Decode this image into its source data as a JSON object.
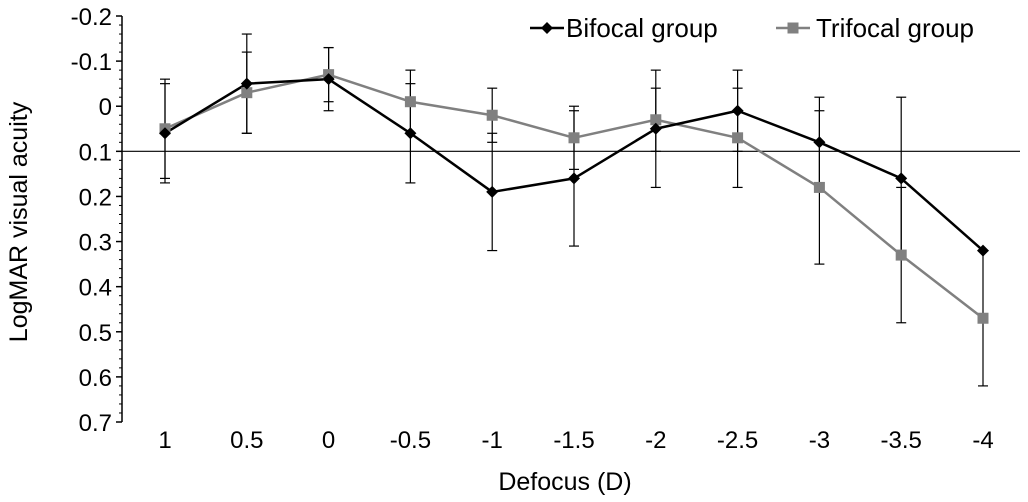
{
  "chart_data": {
    "type": "line",
    "title": "",
    "xlabel": "Defocus (D)",
    "ylabel": "LogMAR visual acuity",
    "categories": [
      "1",
      "0.5",
      "0",
      "-0.5",
      "-1",
      "-1.5",
      "-2",
      "-2.5",
      "-3",
      "-3.5",
      "-4"
    ],
    "y_reversed": true,
    "ylim": [
      -0.2,
      0.7
    ],
    "y_ticks": [
      "-0.2",
      "-0.1",
      "0",
      "0.1",
      "0.2",
      "0.3",
      "0.4",
      "0.5",
      "0.6",
      "0.7"
    ],
    "reference_line_y": 0.1,
    "legend_position": "top-right",
    "grid": false,
    "series": [
      {
        "name": "Bifocal group",
        "color": "#000000",
        "marker": "diamond",
        "values": [
          0.06,
          -0.05,
          -0.06,
          0.06,
          0.19,
          0.16,
          0.05,
          0.01,
          0.08,
          0.16,
          0.32
        ],
        "error": [
          0.11,
          0.11,
          0.07,
          0.11,
          0.13,
          0.15,
          0.13,
          0.09,
          0.1,
          0.18,
          0.0
        ]
      },
      {
        "name": "Trifocal group",
        "color": "#808080",
        "marker": "square",
        "values": [
          0.05,
          -0.03,
          -0.07,
          -0.01,
          0.02,
          0.07,
          0.03,
          0.07,
          0.18,
          0.33,
          0.47
        ],
        "error": [
          0.11,
          0.09,
          0.06,
          0.07,
          0.06,
          0.07,
          0.07,
          0.11,
          0.17,
          0.15,
          0.15
        ]
      }
    ]
  }
}
